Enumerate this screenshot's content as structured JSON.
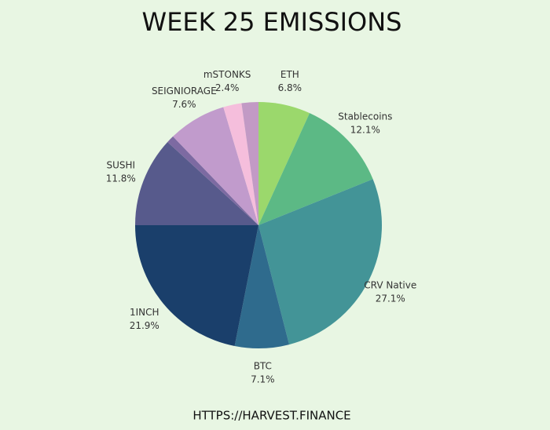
{
  "chart_data": {
    "type": "pie",
    "title": "WEEK 25 EMISSIONS",
    "footer": "HTTPS://HARVEST.FINANCE",
    "categories": [
      "ETH",
      "Stablecoins",
      "CRV Native",
      "BTC",
      "1INCH",
      "SUSHI",
      null,
      "SEIGNIORAGE",
      "mSTONKS",
      null
    ],
    "values": [
      6.8,
      12.1,
      27.1,
      7.1,
      21.9,
      11.8,
      1.0,
      7.6,
      2.4,
      2.2
    ],
    "value_labels": [
      "6.8%",
      "12.1%",
      "27.1%",
      "7.1%",
      "21.9%",
      "11.8%",
      null,
      "7.6%",
      "2.4%",
      null
    ],
    "colors": [
      "#9bd86c",
      "#5cb985",
      "#439497",
      "#2f6b8d",
      "#1a3f6b",
      "#575a8c",
      "#7d6aa2",
      "#c19bcc",
      "#f5bedc",
      "#c29ac5"
    ]
  }
}
